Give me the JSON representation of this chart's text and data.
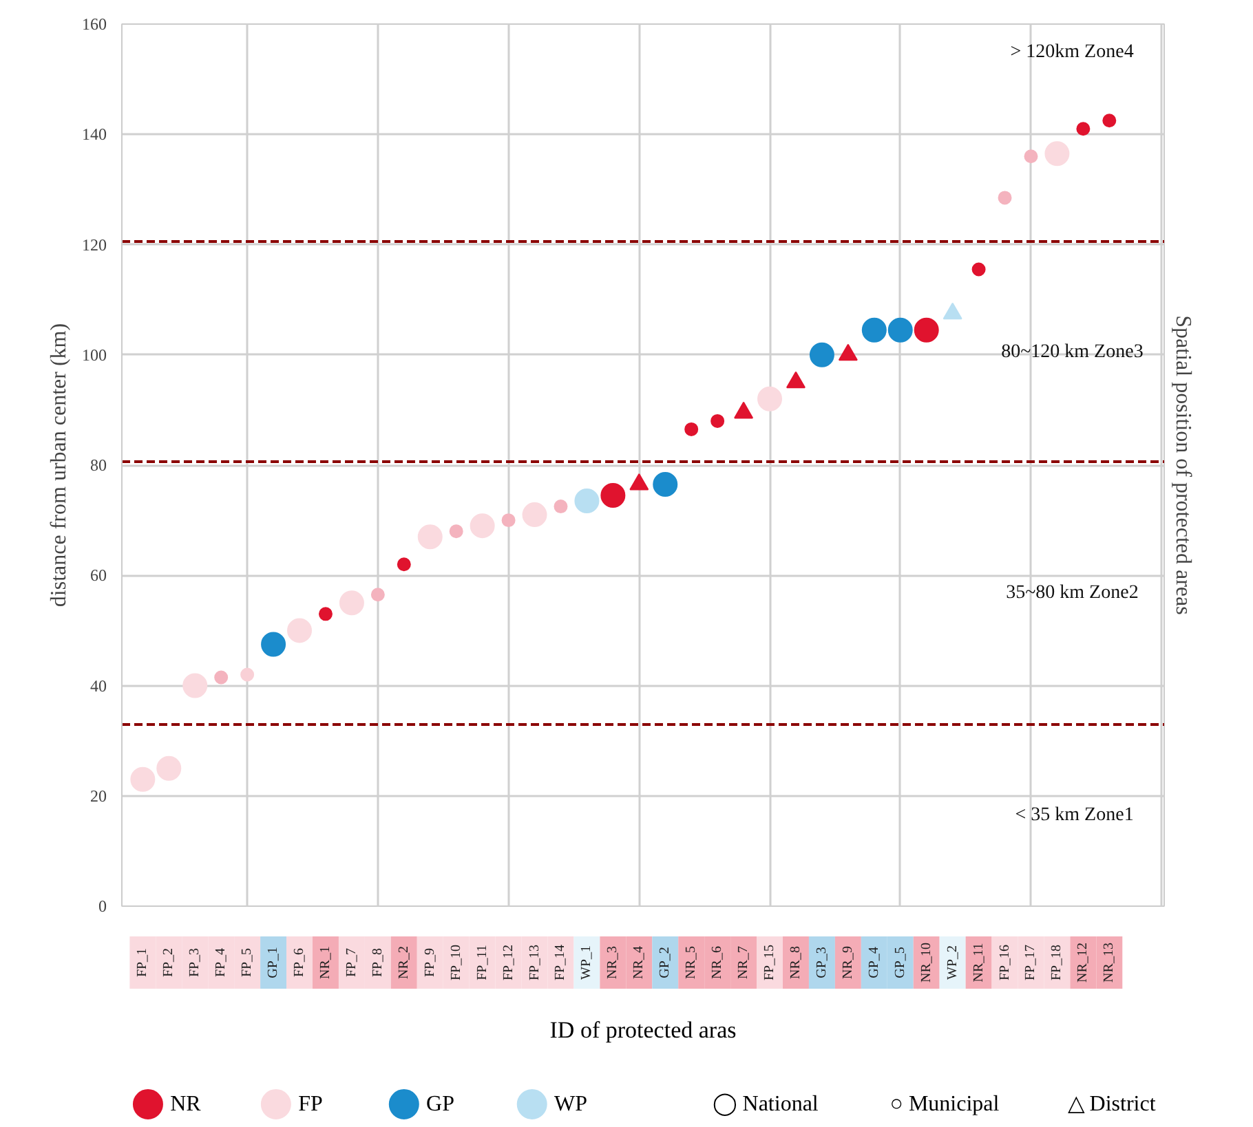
{
  "chart_data": {
    "type": "scatter",
    "xlabel": "ID of protected aras",
    "ylabel": "distance from urban center (km)",
    "y2label": "Spatial position of protected areas",
    "categories": [
      "FP_1",
      "FP_2",
      "FP_3",
      "FP_4",
      "FP_5",
      "GP_1",
      "FP_6",
      "NR_1",
      "FP_7",
      "FP_8",
      "NR_2",
      "FP_9",
      "FP_10",
      "FP_11",
      "FP_12",
      "FP_13",
      "FP_14",
      "WP_1",
      "NR_3",
      "NR_4",
      "GP_2",
      "NR_5",
      "NR_6",
      "NR_7",
      "FP_15",
      "NR_8",
      "GP_3",
      "NR_9",
      "GP_4",
      "GP_5",
      "NR_10",
      "WP_2",
      "NR_11",
      "FP_16",
      "FP_17",
      "FP_18",
      "NR_12",
      "NR_13"
    ],
    "ylim": [
      0,
      160
    ],
    "yticks": [
      0,
      20,
      40,
      60,
      80,
      100,
      120,
      140,
      160
    ],
    "grid": true,
    "legend": "bottom",
    "marker": "circle",
    "series": [
      {
        "name": "NR",
        "color": "#e0132e",
        "values": [
          null,
          null,
          null,
          null,
          null,
          null,
          null,
          53,
          null,
          null,
          62,
          null,
          null,
          null,
          null,
          null,
          null,
          null,
          74.5,
          null,
          null,
          86.5,
          88,
          null,
          null,
          null,
          null,
          null,
          null,
          null,
          104.5,
          null,
          115.5,
          null,
          null,
          null,
          141,
          142.5
        ],
        "sizes": [
          null,
          null,
          null,
          null,
          null,
          null,
          null,
          0.28,
          null,
          null,
          0.28,
          null,
          null,
          null,
          null,
          null,
          null,
          null,
          1,
          null,
          null,
          0.28,
          0.28,
          null,
          null,
          null,
          null,
          null,
          null,
          null,
          1,
          null,
          0.28,
          null,
          null,
          null,
          0.28,
          0.28
        ]
      },
      {
        "name": "FP",
        "color": "#fadadf",
        "values": [
          23,
          25,
          40,
          41.5,
          42,
          null,
          50,
          null,
          55,
          56.5,
          null,
          67,
          68,
          69,
          70,
          71,
          72.5,
          null,
          null,
          null,
          null,
          null,
          null,
          null,
          92,
          null,
          null,
          null,
          null,
          null,
          null,
          null,
          null,
          128.5,
          136,
          136.5,
          null,
          null
        ],
        "sizes": [
          1,
          1,
          1,
          0.28,
          0.28,
          null,
          1,
          null,
          1,
          0.28,
          null,
          1,
          0.28,
          1,
          0.28,
          1,
          0.28,
          null,
          null,
          null,
          null,
          null,
          null,
          null,
          1,
          null,
          null,
          null,
          null,
          null,
          null,
          null,
          null,
          0.28,
          0.28,
          1,
          null,
          null
        ],
        "colors": [
          "#fadadf",
          "#fadadf",
          "#fadadf",
          "#f4b3be",
          "#f9d0d6",
          null,
          "#fadadf",
          null,
          "#fadadf",
          "#f4b3be",
          null,
          "#fadadf",
          "#f4b3be",
          "#fadadf",
          "#f4b3be",
          "#fadadf",
          "#f4b3be",
          null,
          null,
          null,
          null,
          null,
          null,
          null,
          "#fadadf",
          null,
          null,
          null,
          null,
          null,
          null,
          null,
          null,
          "#f4b3be",
          "#f4b3be",
          "#fadadf",
          null,
          null
        ]
      },
      {
        "name": "GP",
        "color": "#1b8ccc",
        "values": [
          null,
          null,
          null,
          null,
          null,
          47.5,
          null,
          null,
          null,
          null,
          null,
          null,
          null,
          null,
          null,
          null,
          null,
          null,
          null,
          null,
          76.5,
          null,
          null,
          null,
          null,
          null,
          100,
          null,
          104.5,
          104.5,
          null,
          null,
          null,
          null,
          null,
          null,
          null,
          null
        ]
      },
      {
        "name": "WP",
        "color": "#b8dff2",
        "values": [
          null,
          null,
          null,
          null,
          null,
          null,
          null,
          null,
          null,
          null,
          null,
          null,
          null,
          null,
          null,
          null,
          null,
          73.5,
          null,
          null,
          null,
          null,
          null,
          null,
          null,
          null,
          null,
          null,
          null,
          null,
          null,
          null,
          null,
          null,
          null,
          null,
          null,
          null
        ]
      },
      {
        "color": "#e0132e",
        "marker": "triangle",
        "values": [
          null,
          null,
          null,
          null,
          null,
          null,
          null,
          null,
          null,
          null,
          null,
          null,
          null,
          null,
          null,
          null,
          null,
          null,
          null,
          76.5,
          null,
          null,
          null,
          89.5,
          null,
          95,
          null,
          100,
          null,
          null,
          null,
          null,
          null,
          null,
          null,
          null,
          null,
          null
        ]
      },
      {
        "color": "#b8dff2",
        "marker": "triangle",
        "values": [
          null,
          null,
          null,
          null,
          null,
          null,
          null,
          null,
          null,
          null,
          null,
          null,
          null,
          null,
          null,
          null,
          null,
          null,
          null,
          null,
          null,
          null,
          null,
          null,
          null,
          null,
          null,
          null,
          null,
          null,
          null,
          107.5,
          null,
          null,
          null,
          null,
          null,
          null
        ]
      }
    ],
    "ref_lines": [
      {
        "axis": "y",
        "value": 120.5,
        "color": "#8b0000",
        "line_style": "dashed"
      },
      {
        "axis": "y",
        "value": 80.5,
        "color": "#8b0000",
        "line_style": "dashed"
      },
      {
        "axis": "y",
        "value": 33,
        "color": "#8b0000",
        "line_style": "dashed"
      }
    ],
    "annotations": [
      "> 120km   Zone4",
      "80~120 km Zone3",
      "35~80 km  Zone2",
      "< 35 km   Zone1",
      "◯ National",
      "○ Municipal",
      "△ District"
    ]
  }
}
